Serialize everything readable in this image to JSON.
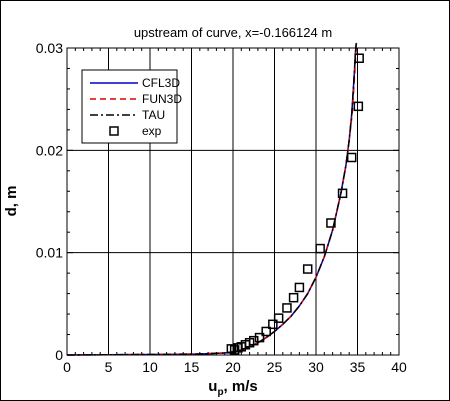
{
  "chart_data": {
    "type": "line",
    "title": "upstream of curve, x=-0.166124 m",
    "xlabel": "u",
    "xlabel_subscript": "p",
    "xlabel_suffix": ", m/s",
    "ylabel": "d, m",
    "xlim": [
      0,
      40
    ],
    "ylim": [
      0,
      0.03
    ],
    "x_ticks": [
      0,
      5,
      10,
      15,
      20,
      25,
      30,
      35,
      40
    ],
    "y_ticks": [
      0,
      0.01,
      0.02,
      0.03
    ],
    "x_tick_labels": [
      "0",
      "5",
      "10",
      "15",
      "20",
      "25",
      "30",
      "35",
      "40"
    ],
    "y_tick_labels": [
      "0",
      "0.01",
      "0.02",
      "0.03"
    ],
    "grid": true,
    "legend_position": "top-left",
    "series": [
      {
        "name": "CFL3D",
        "style": "solid",
        "color": "#0000cc",
        "x": [
          0,
          10,
          16,
          19,
          20,
          21,
          22,
          23,
          24,
          25,
          26,
          27,
          28,
          29,
          30,
          31,
          32,
          33,
          33.6,
          34,
          34.3,
          34.5,
          34.65,
          34.75,
          34.85
        ],
        "y": [
          0,
          5e-05,
          0.0001,
          0.0002,
          0.0003,
          0.0005,
          0.0008,
          0.0012,
          0.0017,
          0.0023,
          0.003,
          0.0038,
          0.0048,
          0.006,
          0.0076,
          0.0096,
          0.0122,
          0.0158,
          0.0185,
          0.021,
          0.0235,
          0.026,
          0.028,
          0.0295,
          0.0305
        ]
      },
      {
        "name": "FUN3D",
        "style": "dashed",
        "color": "#dd0000",
        "x": [
          0,
          10,
          16,
          19,
          20,
          21,
          22,
          23,
          24,
          25,
          26,
          27,
          28,
          29,
          30,
          31,
          32,
          33,
          33.6,
          34,
          34.35,
          34.55,
          34.7,
          34.8,
          34.9
        ],
        "y": [
          0,
          5e-05,
          0.0001,
          0.0002,
          0.0003,
          0.0005,
          0.0008,
          0.0012,
          0.0017,
          0.0023,
          0.003,
          0.0038,
          0.0048,
          0.006,
          0.0076,
          0.0096,
          0.0122,
          0.0158,
          0.0185,
          0.021,
          0.0235,
          0.026,
          0.028,
          0.0295,
          0.0305
        ]
      },
      {
        "name": "TAU",
        "style": "dashdot",
        "color": "#000000",
        "x": [
          0,
          10,
          16,
          19,
          20,
          21,
          22,
          23,
          24,
          25,
          26,
          27,
          28,
          29,
          30,
          31,
          32,
          33,
          33.6,
          34,
          34.3,
          34.5,
          34.65,
          34.75,
          34.85
        ],
        "y": [
          0,
          5e-05,
          0.0001,
          0.0002,
          0.0003,
          0.0005,
          0.0008,
          0.0012,
          0.0017,
          0.0023,
          0.003,
          0.0038,
          0.0048,
          0.006,
          0.0076,
          0.0096,
          0.0122,
          0.0158,
          0.0185,
          0.021,
          0.0235,
          0.026,
          0.028,
          0.0295,
          0.0305
        ]
      },
      {
        "name": "exp",
        "style": "markers",
        "marker": "square",
        "color": "#000000",
        "x": [
          19.8,
          20.2,
          20.6,
          21.0,
          21.5,
          22.0,
          22.5,
          23.2,
          24.0,
          24.8,
          25.5,
          26.5,
          27.3,
          28.0,
          29.0,
          30.5,
          31.8,
          33.2,
          34.3,
          35.1,
          35.2
        ],
        "y": [
          0.0006,
          0.0005,
          0.0007,
          0.0008,
          0.001,
          0.0012,
          0.0014,
          0.0017,
          0.0023,
          0.003,
          0.0036,
          0.0046,
          0.0056,
          0.0066,
          0.0084,
          0.0104,
          0.0129,
          0.0158,
          0.0193,
          0.0243,
          0.029
        ]
      }
    ]
  }
}
